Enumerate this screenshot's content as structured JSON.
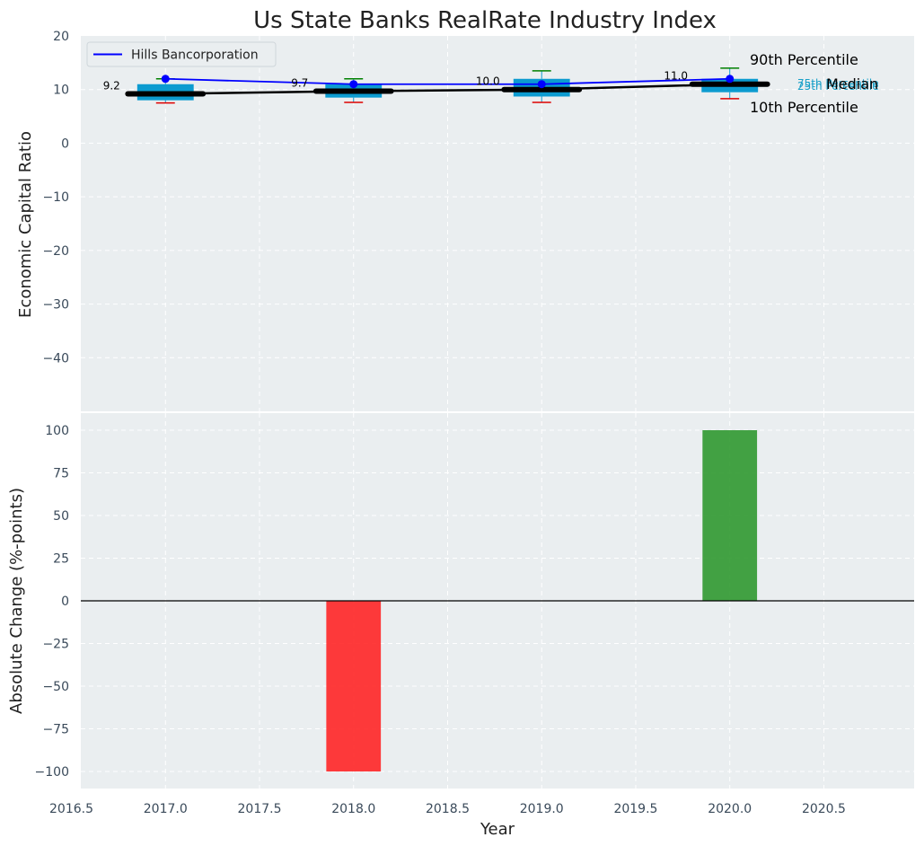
{
  "chart_data": {
    "type": "box+line+bar",
    "title": "Us State Banks RealRate Industry Index",
    "xlabel": "Year",
    "xlim": [
      2016.55,
      2020.98
    ],
    "xticks": [
      2016.5,
      2017.0,
      2017.5,
      2018.0,
      2018.5,
      2019.0,
      2019.5,
      2020.0,
      2020.5
    ],
    "xtick_labels": [
      "2016.5",
      "2017.0",
      "2017.5",
      "2018.0",
      "2018.5",
      "2019.0",
      "2019.5",
      "2020.0",
      "2020.5"
    ],
    "top": {
      "ylabel": "Economic Capital Ratio",
      "ylim": [
        -50,
        20
      ],
      "yticks": [
        20,
        10,
        0,
        -10,
        -20,
        -30,
        -40
      ],
      "ytick_labels": [
        "20",
        "10",
        "0",
        "−10",
        "−20",
        "−30",
        "−40"
      ],
      "boxes": [
        {
          "year": 2017,
          "p10": 7.5,
          "p25": 8.0,
          "median": 9.2,
          "p75": 11.0,
          "p90": 12.0
        },
        {
          "year": 2018,
          "p10": 7.6,
          "p25": 8.5,
          "median": 9.7,
          "p75": 11.0,
          "p90": 12.0
        },
        {
          "year": 2019,
          "p10": 7.6,
          "p25": 8.7,
          "median": 10.0,
          "p75": 12.0,
          "p90": 13.5
        },
        {
          "year": 2020,
          "p10": 8.3,
          "p25": 9.5,
          "median": 11.0,
          "p75": 12.0,
          "p90": 14.0
        }
      ],
      "median_labels": [
        "9.2",
        "9.7",
        "10.0",
        "11.0"
      ],
      "company_series": {
        "name": "Hills Bancorporation",
        "years": [
          2017,
          2018,
          2019,
          2020
        ],
        "values": [
          12.0,
          11.0,
          11.0,
          12.0
        ],
        "color": "#0000ff"
      },
      "median_series": {
        "years": [
          2017,
          2018,
          2019,
          2020
        ],
        "values": [
          9.2,
          9.7,
          10.0,
          11.0
        ]
      },
      "legend": {
        "label": "Hills Bancorporation",
        "position": "upper-left"
      },
      "annotations": {
        "p90": "90th Percentile",
        "median": "Median",
        "p10": "10th Percentile",
        "p75": "75th Percentile",
        "p25": "25th Percentile"
      }
    },
    "bottom": {
      "ylabel": "Absolute Change (%-points)",
      "ylim": [
        -110,
        110
      ],
      "yticks": [
        100,
        75,
        50,
        25,
        0,
        -25,
        -50,
        -75,
        -100
      ],
      "ytick_labels": [
        "100",
        "75",
        "50",
        "25",
        "0",
        "−25",
        "−50",
        "−75",
        "−100"
      ],
      "bars": [
        {
          "year": 2018,
          "value": -100,
          "color": "#ff2020"
        },
        {
          "year": 2020,
          "value": 100,
          "color": "#2a962a"
        }
      ]
    },
    "colors": {
      "background": "#eaeef0",
      "box": "#0c9bd0",
      "whisker_high": "#008000",
      "whisker_low": "#dd0000",
      "median": "#000000",
      "company": "#0000ff"
    }
  }
}
